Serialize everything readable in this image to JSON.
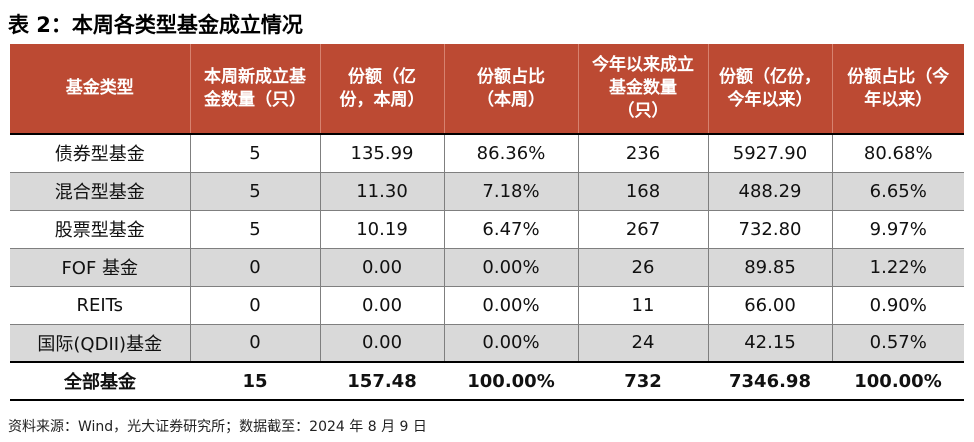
{
  "title": "表 2：本周各类型基金成立情况",
  "table": {
    "headers": [
      "基金类型",
      "本周新成立基金数量（只）",
      "份额（亿份，本周）",
      "份额占比（本周）",
      "今年以来成立基金数量（只）",
      "份额（亿份，今年以来）",
      "份额占比（今年以来）"
    ],
    "rows": [
      [
        "债券型基金",
        "5",
        "135.99",
        "86.36%",
        "236",
        "5927.90",
        "80.68%"
      ],
      [
        "混合型基金",
        "5",
        "11.30",
        "7.18%",
        "168",
        "488.29",
        "6.65%"
      ],
      [
        "股票型基金",
        "5",
        "10.19",
        "6.47%",
        "267",
        "732.80",
        "9.97%"
      ],
      [
        "FOF 基金",
        "0",
        "0.00",
        "0.00%",
        "26",
        "89.85",
        "1.22%"
      ],
      [
        "REITs",
        "0",
        "0.00",
        "0.00%",
        "11",
        "66.00",
        "0.90%"
      ],
      [
        "国际(QDII)基金",
        "0",
        "0.00",
        "0.00%",
        "24",
        "42.15",
        "0.57%"
      ]
    ],
    "total": [
      "全部基金",
      "15",
      "157.48",
      "100.00%",
      "732",
      "7346.98",
      "100.00%"
    ]
  },
  "source": "资料来源：Wind，光大证券研究所；数据截至：2024 年 8 月 9 日",
  "colors": {
    "header_bg": "#bc4a33",
    "header_text": "#ffffff",
    "stripe_bg": "#d9d9d9"
  }
}
